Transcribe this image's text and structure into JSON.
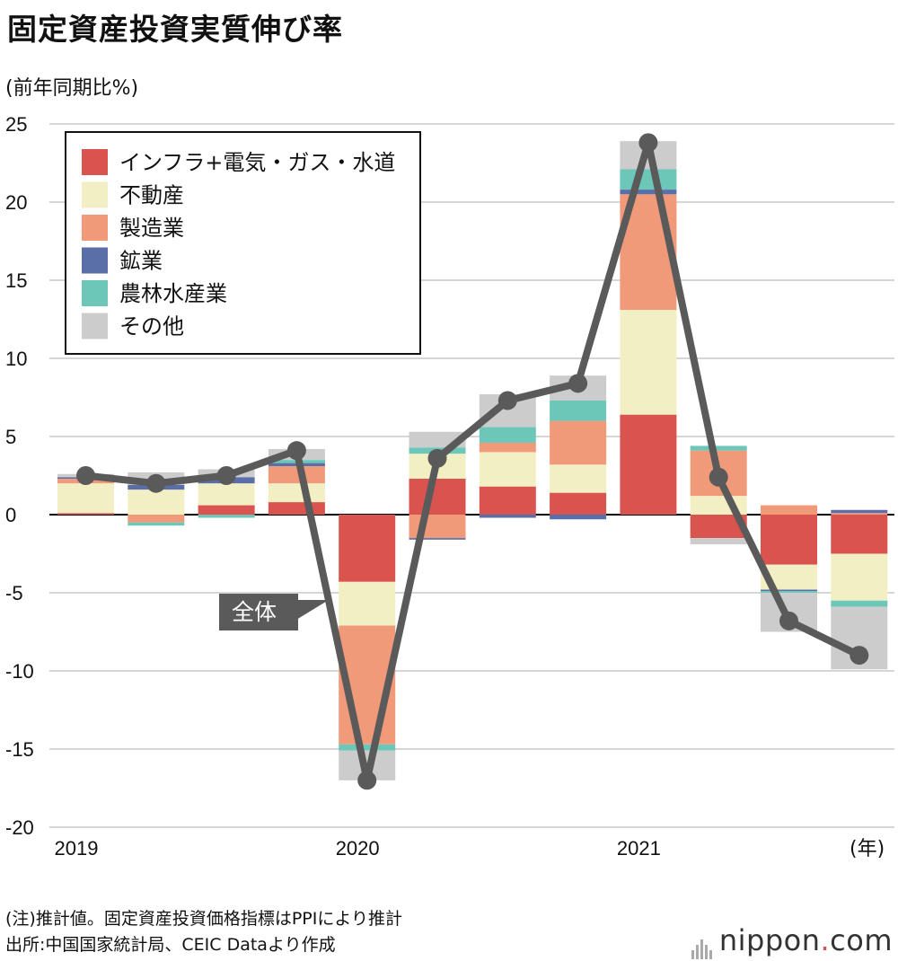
{
  "title": "固定資産投資実質伸び率",
  "unit_label": "(前年同期比%)",
  "x_unit_label": "(年)",
  "note": "(注)推計値。固定資産投資価格指標はPPIにより推計",
  "source": "出所:中国国家統計局、CEIC Dataより作成",
  "brand": {
    "name": "nippon",
    "dot": ".",
    "suffix": "com"
  },
  "total_label": "全体",
  "chart_data": {
    "type": "stacked-bar-with-line",
    "title": "固定資産投資実質伸び率",
    "ylabel": "(前年同期比%)",
    "ylim": [
      -20,
      25
    ],
    "yticks": [
      25,
      20,
      15,
      10,
      5,
      0,
      -5,
      -10,
      -15,
      -20
    ],
    "x_tick_labels": [
      {
        "label": "2019",
        "index": 0
      },
      {
        "label": "2020",
        "index": 4
      },
      {
        "label": "2021",
        "index": 8
      }
    ],
    "periods": [
      "2019Q1",
      "2019Q2",
      "2019Q3",
      "2019Q4",
      "2020Q1",
      "2020Q2",
      "2020Q3",
      "2020Q4",
      "2021Q1",
      "2021Q2",
      "2021Q3",
      "2021Q4"
    ],
    "series": [
      {
        "name": "インフラ+電気・ガス・水道",
        "color": "#d9534f",
        "values": [
          0.1,
          0.0,
          0.6,
          0.8,
          -4.3,
          2.3,
          1.8,
          1.4,
          6.4,
          -1.5,
          -3.2,
          -2.5
        ]
      },
      {
        "name": "不動産",
        "color": "#f3efc4",
        "values": [
          1.9,
          1.6,
          1.4,
          1.2,
          -2.8,
          1.6,
          2.2,
          1.8,
          6.7,
          1.2,
          -1.6,
          -3.0
        ]
      },
      {
        "name": "製造業",
        "color": "#f09a7a",
        "values": [
          0.3,
          -0.5,
          0.0,
          1.1,
          -7.6,
          -1.5,
          0.6,
          2.8,
          7.4,
          2.9,
          0.6,
          0.1
        ]
      },
      {
        "name": "鉱業",
        "color": "#5a6ea8",
        "values": [
          0.1,
          0.3,
          0.4,
          0.2,
          0.0,
          -0.1,
          -0.2,
          -0.3,
          0.3,
          0.0,
          -0.1,
          0.2
        ]
      },
      {
        "name": "農林水産業",
        "color": "#6cc7b8",
        "values": [
          0.0,
          -0.2,
          -0.2,
          0.2,
          -0.4,
          0.4,
          1.0,
          1.3,
          1.3,
          0.3,
          -0.1,
          -0.4
        ]
      },
      {
        "name": "その他",
        "color": "#cccccc",
        "values": [
          0.2,
          0.8,
          0.5,
          0.7,
          -1.9,
          1.0,
          2.1,
          1.6,
          1.8,
          -0.4,
          -2.5,
          -4.0
        ]
      }
    ],
    "total": {
      "name": "全体",
      "values": [
        2.5,
        2.0,
        2.5,
        4.1,
        -17.0,
        3.6,
        7.3,
        8.4,
        23.8,
        2.4,
        -6.8,
        -9.0
      ]
    }
  }
}
